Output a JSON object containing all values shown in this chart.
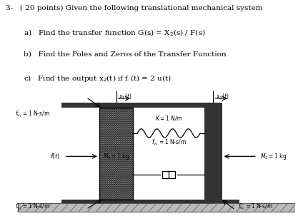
{
  "bg_color": "#ffffff",
  "text_color": "#000000",
  "line1": "3-   ( 20 points) Given the following translational mechanical system",
  "line2": "        a)   Find the transfer function G(s) = X",
  "line2b": "2(s) / F(s)",
  "line3": "        b)   Find the Poles and Zeros of the Transfer Function",
  "line4": "        c)   Find the output x",
  "line4b": "2(t) if f (t) = 2 u(t)"
}
